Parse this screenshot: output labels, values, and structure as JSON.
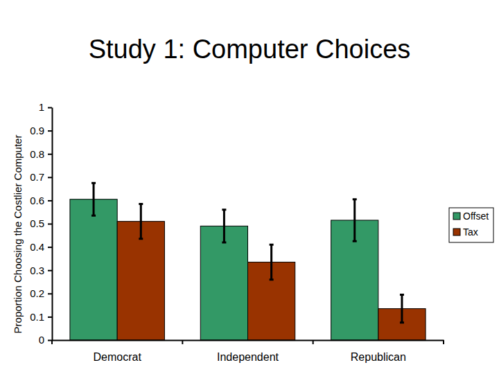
{
  "chart_data": {
    "type": "bar",
    "title": "Study 1: Computer Choices",
    "y_label": "Proportion Choosing the Costlier Computer",
    "categories": [
      "Democrat",
      "Independent",
      "Republican"
    ],
    "series": [
      {
        "name": "Offset",
        "color": "#339966",
        "values": [
          0.605,
          0.49,
          0.515
        ],
        "errors": [
          0.07,
          0.07,
          0.09
        ]
      },
      {
        "name": "Tax",
        "color": "#993300",
        "values": [
          0.51,
          0.335,
          0.135
        ],
        "errors": [
          0.075,
          0.075,
          0.06
        ]
      }
    ],
    "ylim": [
      0,
      1
    ],
    "yticks": [
      0,
      0.1,
      0.2,
      0.3,
      0.4,
      0.5,
      0.6,
      0.7,
      0.8,
      0.9,
      1
    ],
    "legend": "right",
    "grid": false
  }
}
